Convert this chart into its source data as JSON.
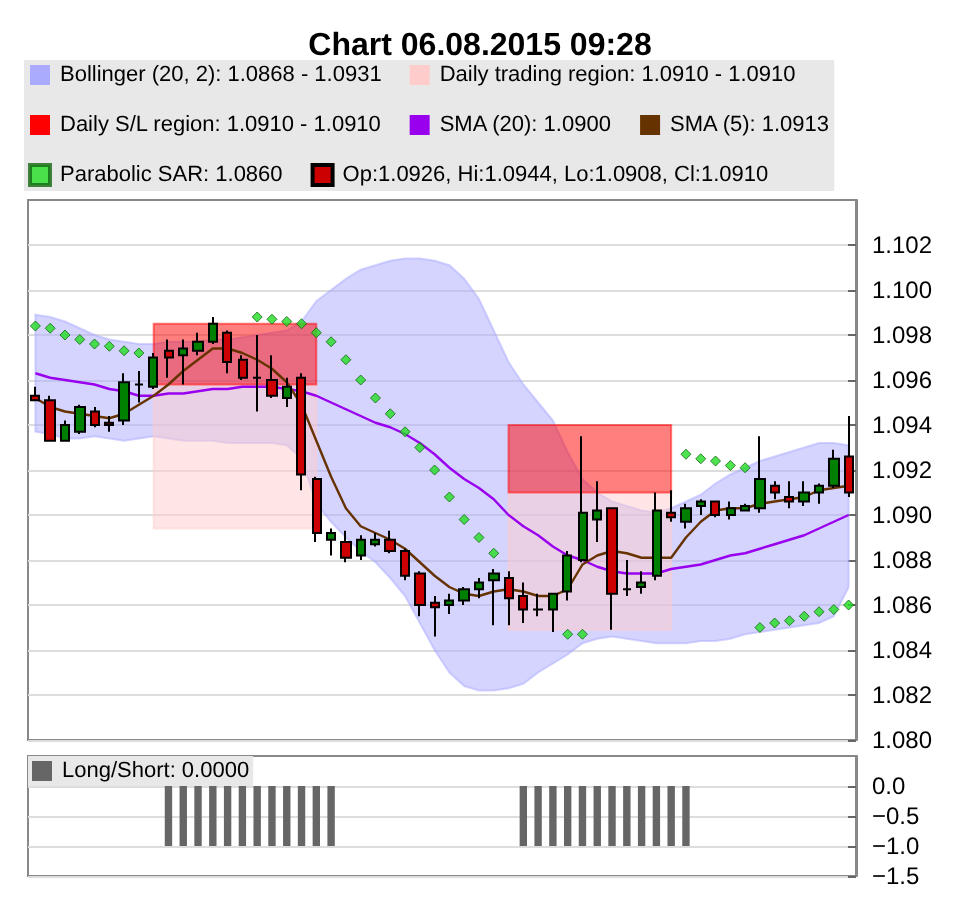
{
  "chart_data": [
    {
      "type": "candlestick",
      "title": "Chart 06.08.2015 09:28",
      "categories": [
        null,
        null,
        null,
        null,
        null,
        null,
        null,
        null,
        null,
        null,
        null,
        null,
        null,
        null,
        null,
        null,
        null,
        null,
        null,
        null,
        null,
        null,
        null,
        null,
        null,
        null,
        null,
        null,
        null,
        null,
        null,
        null,
        null,
        null,
        null,
        null,
        null,
        null,
        null,
        null,
        null,
        null,
        null,
        null,
        null,
        null,
        null,
        null,
        null,
        null,
        null,
        null,
        null,
        null,
        null,
        null
      ],
      "ylim": [
        1.08,
        1.104
      ],
      "yticks": [
        {
          "value": 1.08,
          "label": "1.080"
        },
        {
          "value": 1.082,
          "label": "1.082"
        },
        {
          "value": 1.084,
          "label": "1.084"
        },
        {
          "value": 1.086,
          "label": "1.086"
        },
        {
          "value": 1.088,
          "label": "1.088"
        },
        {
          "value": 1.09,
          "label": "1.090"
        },
        {
          "value": 1.092,
          "label": "1.092"
        },
        {
          "value": 1.094,
          "label": "1.094"
        },
        {
          "value": 1.096,
          "label": "1.096"
        },
        {
          "value": 1.098,
          "label": "1.098"
        },
        {
          "value": 1.1,
          "label": "1.100"
        },
        {
          "value": 1.102,
          "label": "1.102"
        }
      ],
      "grid": "y",
      "legend": "top",
      "tick_labels": "y",
      "series": [
        {
          "type": "area",
          "name": "Bollinger (20, 2): 1.0868 - 1.0931",
          "color": "#aaaaff",
          "values": [
            null,
            null,
            null,
            null,
            null,
            null,
            null,
            null,
            null,
            null,
            null,
            null,
            null,
            null,
            null,
            null,
            null,
            null,
            null,
            null,
            null,
            null,
            null,
            null,
            null,
            null,
            null,
            null,
            null,
            null,
            null,
            null,
            null,
            null,
            null,
            null,
            null,
            null,
            null,
            null,
            null,
            null,
            null,
            null,
            null,
            null,
            null,
            null,
            null,
            null,
            null,
            null,
            null,
            null,
            null,
            null
          ],
          "upper": [
            1.0989,
            1.0988,
            1.0986,
            1.0983,
            1.098,
            1.0978,
            1.0977,
            1.0976,
            1.0976,
            1.0977,
            1.0977,
            1.0977,
            1.0978,
            1.0978,
            1.0979,
            1.098,
            1.0981,
            1.0982,
            1.0986,
            1.0995,
            1.1,
            1.1005,
            1.1009,
            1.1011,
            1.1013,
            1.1014,
            1.1014,
            1.1013,
            1.1011,
            1.1005,
            1.0996,
            1.0982,
            1.0968,
            1.0958,
            1.095,
            1.0942,
            1.0928,
            1.0916,
            1.091,
            1.0906,
            1.0904,
            1.0902,
            1.0901,
            1.0903,
            1.0906,
            1.0909,
            1.0914,
            1.0918,
            1.0921,
            1.0924,
            1.0926,
            1.0928,
            1.093,
            1.0932,
            1.0932,
            1.0931
          ],
          "lower": [
            1.0937,
            1.0936,
            1.0934,
            1.0934,
            1.0935,
            1.0934,
            1.0933,
            1.0934,
            1.0935,
            1.0934,
            1.0933,
            1.0933,
            1.0933,
            1.0932,
            1.0932,
            1.0932,
            1.0932,
            1.0931,
            1.0925,
            1.0905,
            1.0897,
            1.089,
            1.0884,
            1.0879,
            1.0872,
            1.0864,
            1.0852,
            1.084,
            1.083,
            1.0824,
            1.0822,
            1.0822,
            1.0823,
            1.0825,
            1.083,
            1.0834,
            1.0838,
            1.0843,
            1.0845,
            1.0846,
            1.0845,
            1.0844,
            1.0843,
            1.0843,
            1.0843,
            1.0844,
            1.0844,
            1.0845,
            1.0847,
            1.0848,
            1.0849,
            1.085,
            1.0851,
            1.0852,
            1.0855,
            1.0868
          ]
        },
        {
          "type": "area",
          "name": "Daily trading region: 1.0910 - 1.0910",
          "color": "#ffcccc",
          "values": [
            null,
            null,
            null,
            null,
            null,
            null,
            null,
            null,
            null,
            null,
            null,
            null,
            null,
            null,
            null,
            null,
            null,
            null,
            null,
            null,
            null,
            null,
            null,
            null,
            null,
            null,
            null,
            null,
            null,
            null,
            null,
            null,
            null,
            null,
            null,
            null,
            null,
            null,
            null,
            null,
            null,
            null,
            null,
            null,
            null,
            null,
            null,
            null,
            null,
            null,
            null,
            null,
            null,
            null,
            null,
            null
          ],
          "lower": [
            null,
            null,
            null,
            null,
            null,
            null,
            null,
            null,
            1.0894,
            1.0894,
            1.0894,
            1.0894,
            1.0894,
            1.0894,
            1.0894,
            1.0894,
            1.0894,
            1.0894,
            1.0894,
            1.0894,
            null,
            null,
            null,
            null,
            null,
            null,
            null,
            null,
            null,
            null,
            null,
            null,
            1.0849,
            1.0849,
            1.0849,
            1.0849,
            1.0849,
            1.0849,
            1.0849,
            1.0849,
            1.0849,
            1.0849,
            1.0849,
            1.0849,
            null,
            null,
            null,
            null,
            null,
            null,
            null,
            null,
            null,
            null,
            null,
            null
          ],
          "upper": [
            null,
            null,
            null,
            null,
            null,
            null,
            null,
            null,
            1.0958,
            1.0958,
            1.0958,
            1.0958,
            1.0958,
            1.0958,
            1.0958,
            1.0958,
            1.0958,
            1.0958,
            1.0958,
            1.0958,
            null,
            null,
            null,
            null,
            null,
            null,
            null,
            null,
            null,
            null,
            null,
            null,
            1.091,
            1.091,
            1.091,
            1.091,
            1.091,
            1.091,
            1.091,
            1.091,
            1.091,
            1.091,
            1.091,
            1.091,
            null,
            null,
            null,
            null,
            null,
            null,
            null,
            null,
            null,
            null,
            null,
            null
          ]
        },
        {
          "type": "area",
          "name": "Daily S/L region: 1.0910 - 1.0910",
          "color": "#ff0000",
          "values": [
            null,
            null,
            null,
            null,
            null,
            null,
            null,
            null,
            null,
            null,
            null,
            null,
            null,
            null,
            null,
            null,
            null,
            null,
            null,
            null,
            null,
            null,
            null,
            null,
            null,
            null,
            null,
            null,
            null,
            null,
            null,
            null,
            null,
            null,
            null,
            null,
            null,
            null,
            null,
            null,
            null,
            null,
            null,
            null,
            null,
            null,
            null,
            null,
            null,
            null,
            null,
            null,
            null,
            null,
            null,
            null
          ],
          "lower": [
            null,
            null,
            null,
            null,
            null,
            null,
            null,
            null,
            1.0958,
            1.0958,
            1.0958,
            1.0958,
            1.0958,
            1.0958,
            1.0958,
            1.0958,
            1.0958,
            1.0958,
            1.0958,
            1.0958,
            null,
            null,
            null,
            null,
            null,
            null,
            null,
            null,
            null,
            null,
            null,
            null,
            1.091,
            1.091,
            1.091,
            1.091,
            1.091,
            1.091,
            1.091,
            1.091,
            1.091,
            1.091,
            1.091,
            1.091,
            null,
            null,
            null,
            null,
            null,
            null,
            null,
            null,
            null,
            null,
            null,
            null
          ],
          "upper": [
            null,
            null,
            null,
            null,
            null,
            null,
            null,
            null,
            1.0985,
            1.0985,
            1.0985,
            1.0985,
            1.0985,
            1.0985,
            1.0985,
            1.0985,
            1.0985,
            1.0985,
            1.0985,
            1.0985,
            null,
            null,
            null,
            null,
            null,
            null,
            null,
            null,
            null,
            null,
            null,
            null,
            1.094,
            1.094,
            1.094,
            1.094,
            1.094,
            1.094,
            1.094,
            1.094,
            1.094,
            1.094,
            1.094,
            1.094,
            null,
            null,
            null,
            null,
            null,
            null,
            null,
            null,
            null,
            null,
            null,
            null
          ]
        },
        {
          "type": "line",
          "name": "SMA (20): 1.0900",
          "color": "#9900ee",
          "line_style": "solid",
          "marker": "none",
          "values": [
            1.0963,
            1.0961,
            1.096,
            1.0959,
            1.0958,
            1.0956,
            1.0955,
            1.0953,
            1.0953,
            1.0954,
            1.0954,
            1.0955,
            1.0956,
            1.0956,
            1.0957,
            1.0957,
            1.0957,
            1.0956,
            1.0955,
            1.0953,
            1.095,
            1.0947,
            1.0944,
            1.0941,
            1.0939,
            1.0936,
            1.0932,
            1.0927,
            1.0921,
            1.0916,
            1.0912,
            1.0907,
            1.09,
            1.0895,
            1.0891,
            1.0886,
            1.0882,
            1.088,
            1.0877,
            1.0875,
            1.0874,
            1.0874,
            1.0874,
            1.0876,
            1.0877,
            1.0878,
            1.088,
            1.0882,
            1.0883,
            1.0885,
            1.0887,
            1.0889,
            1.0891,
            1.0894,
            1.0897,
            1.09
          ]
        },
        {
          "type": "line",
          "name": "SMA (5): 1.0913",
          "color": "#663300",
          "line_style": "solid",
          "marker": "none",
          "values": [
            1.0952,
            1.0948,
            1.0946,
            1.0945,
            1.0944,
            1.0943,
            1.0945,
            1.0949,
            1.0953,
            1.0958,
            1.0964,
            1.0969,
            1.0974,
            1.0974,
            1.0972,
            1.0969,
            1.0965,
            1.0959,
            1.0949,
            1.0933,
            1.0917,
            1.0903,
            1.0895,
            1.0892,
            1.0889,
            1.0885,
            1.0879,
            1.0873,
            1.0868,
            1.0865,
            1.0864,
            1.0866,
            1.0867,
            1.0866,
            1.0864,
            1.0864,
            1.0867,
            1.0878,
            1.0882,
            1.0884,
            1.0883,
            1.0881,
            1.0881,
            1.0881,
            1.089,
            1.0897,
            1.0902,
            1.0903,
            1.0903,
            1.0905,
            1.0906,
            1.0907,
            1.0908,
            1.0911,
            1.0912,
            1.0913
          ]
        },
        {
          "type": "scatter",
          "name": "Parabolic SAR: 1.0860",
          "color": "#22dd22",
          "marker": "diamond",
          "values": [
            1.0984,
            1.0983,
            1.098,
            1.0978,
            1.0976,
            1.0975,
            1.0973,
            1.0972,
            null,
            null,
            null,
            null,
            null,
            null,
            null,
            1.0988,
            1.0987,
            1.0986,
            1.0985,
            1.0981,
            1.0977,
            1.0969,
            1.096,
            1.0952,
            1.0945,
            1.0937,
            1.093,
            1.092,
            1.0908,
            1.0898,
            1.089,
            1.0883,
            null,
            null,
            null,
            null,
            1.0847,
            1.0847,
            null,
            null,
            null,
            null,
            null,
            null,
            1.0927,
            1.0925,
            1.0924,
            1.0922,
            1.0921,
            1.085,
            1.0852,
            1.0853,
            1.0855,
            1.0857,
            1.0858,
            1.086
          ]
        },
        {
          "type": "candlestick",
          "name": "Op:1.0926, Hi:1.0944, Lo:1.0908, Cl:1.0910",
          "color": "#cc0000",
          "colors": [
            "#cc0000",
            "#cc0000",
            "#008000",
            "#008000",
            "#cc0000",
            "#cc0000",
            "#008000",
            "#000000",
            "#008000",
            "#cc0000",
            "#008000",
            "#008000",
            "#008000",
            "#cc0000",
            "#cc0000",
            "#000000",
            "#cc0000",
            "#008000",
            "#cc0000",
            "#cc0000",
            "#008000",
            "#cc0000",
            "#008000",
            "#008000",
            "#cc0000",
            "#cc0000",
            "#cc0000",
            "#cc0000",
            "#008000",
            "#008000",
            "#008000",
            "#008000",
            "#cc0000",
            "#cc0000",
            "#000000",
            "#008000",
            "#008000",
            "#008000",
            "#008000",
            "#cc0000",
            "#000000",
            "#008000",
            "#008000",
            "#cc0000",
            "#008000",
            "#008000",
            "#cc0000",
            "#008000",
            "#008000",
            "#008000",
            "#cc0000",
            "#cc0000",
            "#008000",
            "#008000",
            "#008000",
            "#cc0000"
          ],
          "ohlc": [
            [
              1.0953,
              1.0957,
              1.0951,
              1.0951
            ],
            [
              1.0951,
              1.0953,
              1.0933,
              1.0933
            ],
            [
              1.0933,
              1.0942,
              1.0933,
              1.094
            ],
            [
              1.0937,
              1.0949,
              1.0936,
              1.0948
            ],
            [
              1.0946,
              1.0948,
              1.0939,
              1.094
            ],
            [
              1.0941,
              1.0944,
              1.0937,
              1.094
            ],
            [
              1.0942,
              1.0963,
              1.094,
              1.0959
            ],
            [
              1.0958,
              1.0964,
              1.095,
              1.0958
            ],
            [
              1.0957,
              1.0972,
              1.0956,
              1.097
            ],
            [
              1.0973,
              1.0978,
              1.0961,
              1.097
            ],
            [
              1.0971,
              1.0978,
              1.0958,
              1.0974
            ],
            [
              1.0973,
              1.0981,
              1.0971,
              1.0977
            ],
            [
              1.0977,
              1.0988,
              1.0976,
              1.0985
            ],
            [
              1.0981,
              1.0982,
              1.0963,
              1.0968
            ],
            [
              1.0969,
              1.0971,
              1.096,
              1.0961
            ],
            [
              1.0961,
              1.098,
              1.0946,
              1.0961
            ],
            [
              1.096,
              1.0971,
              1.0952,
              1.0953
            ],
            [
              1.0952,
              1.0961,
              1.0948,
              1.0957
            ],
            [
              1.0961,
              1.0963,
              1.0911,
              1.0918
            ],
            [
              1.0916,
              1.0917,
              1.0888,
              1.0892
            ],
            [
              1.0889,
              1.0894,
              1.0882,
              1.0892
            ],
            [
              1.0888,
              1.0893,
              1.0879,
              1.0881
            ],
            [
              1.0882,
              1.0891,
              1.088,
              1.0889
            ],
            [
              1.0887,
              1.0892,
              1.0886,
              1.0889
            ],
            [
              1.0889,
              1.0893,
              1.0883,
              1.0884
            ],
            [
              1.0884,
              1.0885,
              1.0871,
              1.0873
            ],
            [
              1.0874,
              1.0875,
              1.0855,
              1.086
            ],
            [
              1.0861,
              1.0864,
              1.0846,
              1.0859
            ],
            [
              1.086,
              1.0865,
              1.0856,
              1.0862
            ],
            [
              1.0862,
              1.0868,
              1.086,
              1.0867
            ],
            [
              1.0867,
              1.0872,
              1.0863,
              1.087
            ],
            [
              1.0871,
              1.0876,
              1.0851,
              1.0874
            ],
            [
              1.0872,
              1.0875,
              1.0851,
              1.0863
            ],
            [
              1.0864,
              1.087,
              1.0852,
              1.0858
            ],
            [
              1.0858,
              1.0865,
              1.0855,
              1.0858
            ],
            [
              1.0858,
              1.0865,
              1.0848,
              1.0865
            ],
            [
              1.0866,
              1.0884,
              1.0862,
              1.0882
            ],
            [
              1.088,
              1.0935,
              1.0879,
              1.0901
            ],
            [
              1.0898,
              1.0915,
              1.0888,
              1.0902
            ],
            [
              1.0903,
              1.0903,
              1.0849,
              1.0865
            ],
            [
              1.0867,
              1.088,
              1.0864,
              1.0867
            ],
            [
              1.0868,
              1.0875,
              1.0865,
              1.087
            ],
            [
              1.0873,
              1.091,
              1.0871,
              1.0902
            ],
            [
              1.0901,
              1.0911,
              1.0897,
              1.0899
            ],
            [
              1.0897,
              1.0905,
              1.0894,
              1.0903
            ],
            [
              1.0904,
              1.0907,
              1.09,
              1.0906
            ],
            [
              1.0906,
              1.0906,
              1.0899,
              1.09
            ],
            [
              1.09,
              1.0906,
              1.0898,
              1.0903
            ],
            [
              1.0902,
              1.0905,
              1.0902,
              1.0904
            ],
            [
              1.0903,
              1.0935,
              1.0901,
              1.0916
            ],
            [
              1.0913,
              1.0915,
              1.0907,
              1.091
            ],
            [
              1.0908,
              1.0915,
              1.0903,
              1.0906
            ],
            [
              1.0906,
              1.0915,
              1.0904,
              1.091
            ],
            [
              1.091,
              1.0914,
              1.0905,
              1.0913
            ],
            [
              1.0913,
              1.0929,
              1.0912,
              1.0925
            ],
            [
              1.0926,
              1.0944,
              1.0908,
              1.091
            ]
          ]
        }
      ]
    },
    {
      "type": "bar",
      "categories": [
        null,
        null,
        null,
        null,
        null,
        null,
        null,
        null,
        null,
        null,
        null,
        null,
        null,
        null,
        null,
        null,
        null,
        null,
        null,
        null,
        null,
        null,
        null,
        null,
        null,
        null,
        null,
        null,
        null,
        null,
        null,
        null,
        null,
        null,
        null,
        null,
        null,
        null,
        null,
        null,
        null,
        null,
        null,
        null,
        null,
        null,
        null,
        null,
        null,
        null,
        null,
        null,
        null,
        null,
        null,
        null
      ],
      "ylim": [
        -1.5,
        0.5
      ],
      "yticks": [
        {
          "value": 0,
          "label": "0.0"
        },
        {
          "value": -0.5,
          "label": "−0.5"
        },
        {
          "value": -1,
          "label": "−1.0"
        },
        {
          "value": -1.5,
          "label": "−1.5"
        }
      ],
      "grid": "y",
      "legend": "top left",
      "tick_labels": "y",
      "series": [
        {
          "name": "Long/Short: 0.0000",
          "color": "#666666",
          "values": [
            0,
            0,
            0,
            0,
            0,
            0,
            0,
            0,
            0,
            -1,
            -1,
            -1,
            -1,
            -1,
            -1,
            -1,
            -1,
            -1,
            -1,
            -1,
            -1,
            0,
            0,
            0,
            0,
            0,
            0,
            0,
            0,
            0,
            0,
            0,
            0,
            -1,
            -1,
            -1,
            -1,
            -1,
            -1,
            -1,
            -1,
            -1,
            -1,
            -1,
            -1,
            0,
            0,
            0,
            0,
            0,
            0,
            0,
            0,
            0,
            0,
            0
          ]
        }
      ]
    }
  ]
}
